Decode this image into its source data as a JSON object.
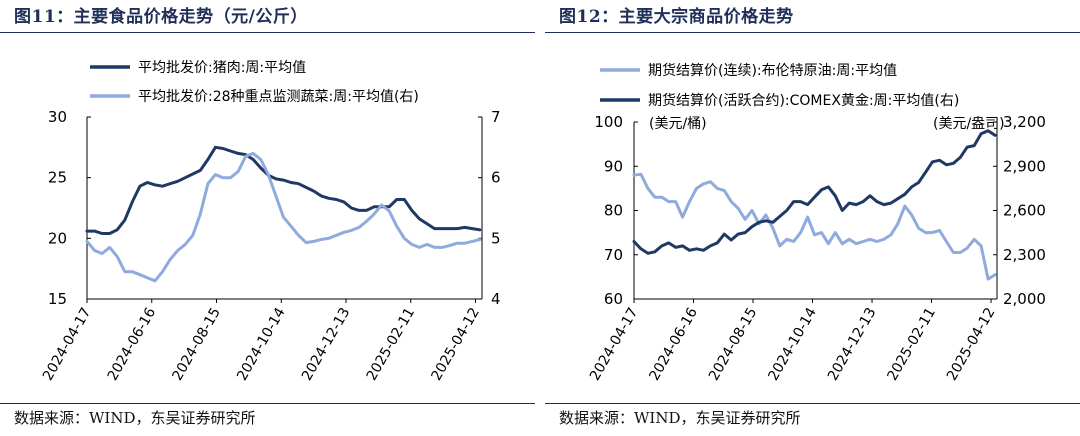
{
  "left": {
    "title": "图11：主要食品价格走势（元/公斤）",
    "source": "数据来源：WIND，东吴证券研究所"
  },
  "right": {
    "title": "图12：主要大宗商品价格走势",
    "source": "数据来源：WIND，东吴证券研究所"
  },
  "chart_data": [
    {
      "type": "line",
      "title": "图11：主要食品价格走势（元/公斤）",
      "x_tick_labels": [
        "2024-04-17",
        "2024-06-16",
        "2024-08-15",
        "2024-10-14",
        "2024-12-13",
        "2025-02-11",
        "2025-04-12"
      ],
      "x_range": [
        "2024-04-17",
        "2025-04-18"
      ],
      "y_left": {
        "ylim": [
          15,
          30
        ],
        "ticks": [
          15,
          20,
          25,
          30
        ],
        "label": ""
      },
      "y_right": {
        "ylim": [
          4,
          7
        ],
        "ticks": [
          4,
          5,
          6,
          7
        ],
        "label": ""
      },
      "grid": false,
      "legend_placement": "top-center",
      "series": [
        {
          "name": "平均批发价:猪肉:周:平均值",
          "axis": "left",
          "color": "#1f3864",
          "points": [
            [
              "2024-04-17",
              20.6
            ],
            [
              "2024-04-24",
              20.6
            ],
            [
              "2024-05-01",
              20.4
            ],
            [
              "2024-05-08",
              20.4
            ],
            [
              "2024-05-15",
              20.7
            ],
            [
              "2024-05-22",
              21.5
            ],
            [
              "2024-05-29",
              23.0
            ],
            [
              "2024-06-05",
              24.3
            ],
            [
              "2024-06-12",
              24.6
            ],
            [
              "2024-06-19",
              24.4
            ],
            [
              "2024-06-26",
              24.3
            ],
            [
              "2024-07-03",
              24.5
            ],
            [
              "2024-07-10",
              24.7
            ],
            [
              "2024-07-17",
              25.0
            ],
            [
              "2024-07-24",
              25.3
            ],
            [
              "2024-07-31",
              25.6
            ],
            [
              "2024-08-07",
              26.5
            ],
            [
              "2024-08-14",
              27.5
            ],
            [
              "2024-08-21",
              27.4
            ],
            [
              "2024-08-28",
              27.2
            ],
            [
              "2024-09-04",
              27.0
            ],
            [
              "2024-09-11",
              26.9
            ],
            [
              "2024-09-18",
              26.5
            ],
            [
              "2024-09-25",
              25.8
            ],
            [
              "2024-10-02",
              25.2
            ],
            [
              "2024-10-09",
              24.9
            ],
            [
              "2024-10-16",
              24.8
            ],
            [
              "2024-10-23",
              24.6
            ],
            [
              "2024-10-30",
              24.5
            ],
            [
              "2024-11-06",
              24.2
            ],
            [
              "2024-11-13",
              23.9
            ],
            [
              "2024-11-20",
              23.5
            ],
            [
              "2024-11-27",
              23.3
            ],
            [
              "2024-12-04",
              23.2
            ],
            [
              "2024-12-11",
              23.0
            ],
            [
              "2024-12-18",
              22.5
            ],
            [
              "2024-12-25",
              22.3
            ],
            [
              "2025-01-01",
              22.3
            ],
            [
              "2025-01-08",
              22.6
            ],
            [
              "2025-01-15",
              22.6
            ],
            [
              "2025-01-22",
              22.6
            ],
            [
              "2025-01-29",
              23.2
            ],
            [
              "2025-02-05",
              23.2
            ],
            [
              "2025-02-12",
              22.3
            ],
            [
              "2025-02-19",
              21.6
            ],
            [
              "2025-02-26",
              21.2
            ],
            [
              "2025-03-05",
              20.8
            ],
            [
              "2025-03-12",
              20.8
            ],
            [
              "2025-03-19",
              20.8
            ],
            [
              "2025-03-26",
              20.8
            ],
            [
              "2025-04-02",
              20.9
            ],
            [
              "2025-04-09",
              20.8
            ],
            [
              "2025-04-16",
              20.7
            ]
          ]
        },
        {
          "name": "平均批发价:28种重点监测蔬菜:周:平均值(右)",
          "axis": "right",
          "color": "#8faadc",
          "points": [
            [
              "2024-04-17",
              4.95
            ],
            [
              "2024-04-24",
              4.8
            ],
            [
              "2024-05-01",
              4.75
            ],
            [
              "2024-05-08",
              4.85
            ],
            [
              "2024-05-15",
              4.7
            ],
            [
              "2024-05-22",
              4.45
            ],
            [
              "2024-05-29",
              4.45
            ],
            [
              "2024-06-05",
              4.4
            ],
            [
              "2024-06-12",
              4.35
            ],
            [
              "2024-06-19",
              4.3
            ],
            [
              "2024-06-26",
              4.45
            ],
            [
              "2024-07-03",
              4.65
            ],
            [
              "2024-07-10",
              4.8
            ],
            [
              "2024-07-17",
              4.9
            ],
            [
              "2024-07-24",
              5.05
            ],
            [
              "2024-07-31",
              5.4
            ],
            [
              "2024-08-07",
              5.9
            ],
            [
              "2024-08-14",
              6.05
            ],
            [
              "2024-08-21",
              6.0
            ],
            [
              "2024-08-28",
              6.0
            ],
            [
              "2024-09-04",
              6.1
            ],
            [
              "2024-09-11",
              6.35
            ],
            [
              "2024-09-18",
              6.4
            ],
            [
              "2024-09-25",
              6.3
            ],
            [
              "2024-10-02",
              6.05
            ],
            [
              "2024-10-09",
              5.7
            ],
            [
              "2024-10-16",
              5.35
            ],
            [
              "2024-10-23",
              5.2
            ],
            [
              "2024-10-30",
              5.05
            ],
            [
              "2024-11-06",
              4.93
            ],
            [
              "2024-11-13",
              4.95
            ],
            [
              "2024-11-20",
              4.98
            ],
            [
              "2024-11-27",
              5.0
            ],
            [
              "2024-12-04",
              5.05
            ],
            [
              "2024-12-11",
              5.1
            ],
            [
              "2024-12-18",
              5.13
            ],
            [
              "2024-12-25",
              5.18
            ],
            [
              "2025-01-01",
              5.28
            ],
            [
              "2025-01-08",
              5.4
            ],
            [
              "2025-01-15",
              5.55
            ],
            [
              "2025-01-22",
              5.45
            ],
            [
              "2025-01-29",
              5.2
            ],
            [
              "2025-02-05",
              5.0
            ],
            [
              "2025-02-12",
              4.9
            ],
            [
              "2025-02-19",
              4.85
            ],
            [
              "2025-02-26",
              4.9
            ],
            [
              "2025-03-05",
              4.85
            ],
            [
              "2025-03-12",
              4.85
            ],
            [
              "2025-03-19",
              4.88
            ],
            [
              "2025-03-26",
              4.92
            ],
            [
              "2025-04-02",
              4.92
            ],
            [
              "2025-04-09",
              4.95
            ],
            [
              "2025-04-16",
              4.98
            ]
          ]
        }
      ]
    },
    {
      "type": "line",
      "title": "图12：主要大宗商品价格走势",
      "x_tick_labels": [
        "2024-04-17",
        "2024-06-16",
        "2024-08-15",
        "2024-10-14",
        "2024-12-13",
        "2025-02-11",
        "2025-04-12"
      ],
      "x_range": [
        "2024-04-17",
        "2025-04-18"
      ],
      "y_left": {
        "ylim": [
          60,
          100
        ],
        "ticks": [
          60,
          70,
          80,
          90,
          100
        ],
        "label": "(美元/桶)"
      },
      "y_right": {
        "ylim": [
          2000,
          3200
        ],
        "ticks": [
          2000,
          2300,
          2600,
          2900,
          3200
        ],
        "tick_labels": [
          "2,000",
          "2,300",
          "2,600",
          "2,900",
          "3,200"
        ],
        "label": "(美元/盎司)"
      },
      "grid": false,
      "legend_placement": "top-center",
      "series": [
        {
          "name": "期货结算价(连续):布伦特原油:周:平均值",
          "axis": "left",
          "color": "#8faadc",
          "points": [
            [
              "2024-04-17",
              88.0
            ],
            [
              "2024-04-24",
              88.2
            ],
            [
              "2024-05-01",
              85.0
            ],
            [
              "2024-05-08",
              83.0
            ],
            [
              "2024-05-15",
              83.0
            ],
            [
              "2024-05-22",
              82.0
            ],
            [
              "2024-05-29",
              82.0
            ],
            [
              "2024-06-05",
              78.5
            ],
            [
              "2024-06-12",
              82.0
            ],
            [
              "2024-06-19",
              85.0
            ],
            [
              "2024-06-26",
              86.0
            ],
            [
              "2024-07-03",
              86.5
            ],
            [
              "2024-07-10",
              85.0
            ],
            [
              "2024-07-17",
              84.5
            ],
            [
              "2024-07-24",
              82.0
            ],
            [
              "2024-07-31",
              80.5
            ],
            [
              "2024-08-07",
              78.0
            ],
            [
              "2024-08-14",
              80.0
            ],
            [
              "2024-08-21",
              77.0
            ],
            [
              "2024-08-28",
              79.0
            ],
            [
              "2024-09-04",
              76.0
            ],
            [
              "2024-09-11",
              72.0
            ],
            [
              "2024-09-18",
              73.5
            ],
            [
              "2024-09-25",
              73.0
            ],
            [
              "2024-10-02",
              75.0
            ],
            [
              "2024-10-09",
              78.5
            ],
            [
              "2024-10-16",
              74.5
            ],
            [
              "2024-10-23",
              75.0
            ],
            [
              "2024-10-30",
              72.5
            ],
            [
              "2024-11-06",
              75.0
            ],
            [
              "2024-11-13",
              72.5
            ],
            [
              "2024-11-20",
              73.5
            ],
            [
              "2024-11-27",
              72.5
            ],
            [
              "2024-12-04",
              73.0
            ],
            [
              "2024-12-11",
              73.5
            ],
            [
              "2024-12-18",
              73.0
            ],
            [
              "2024-12-25",
              73.5
            ],
            [
              "2025-01-01",
              74.5
            ],
            [
              "2025-01-08",
              77.0
            ],
            [
              "2025-01-15",
              81.0
            ],
            [
              "2025-01-22",
              79.0
            ],
            [
              "2025-01-29",
              76.0
            ],
            [
              "2025-02-05",
              75.0
            ],
            [
              "2025-02-12",
              75.0
            ],
            [
              "2025-02-19",
              75.5
            ],
            [
              "2025-02-26",
              73.0
            ],
            [
              "2025-03-05",
              70.5
            ],
            [
              "2025-03-12",
              70.5
            ],
            [
              "2025-03-19",
              71.5
            ],
            [
              "2025-03-26",
              73.5
            ],
            [
              "2025-04-02",
              72.0
            ],
            [
              "2025-04-09",
              64.5
            ],
            [
              "2025-04-16",
              65.5
            ]
          ]
        },
        {
          "name": "期货结算价(活跃合约):COMEX黄金:周:平均值(右)",
          "axis": "right",
          "color": "#1f3864",
          "points": [
            [
              "2024-04-17",
              2390
            ],
            [
              "2024-04-24",
              2340
            ],
            [
              "2024-05-01",
              2310
            ],
            [
              "2024-05-08",
              2320
            ],
            [
              "2024-05-15",
              2360
            ],
            [
              "2024-05-22",
              2380
            ],
            [
              "2024-05-29",
              2350
            ],
            [
              "2024-06-05",
              2360
            ],
            [
              "2024-06-12",
              2330
            ],
            [
              "2024-06-19",
              2340
            ],
            [
              "2024-06-26",
              2330
            ],
            [
              "2024-07-03",
              2360
            ],
            [
              "2024-07-10",
              2380
            ],
            [
              "2024-07-17",
              2440
            ],
            [
              "2024-07-24",
              2400
            ],
            [
              "2024-07-31",
              2440
            ],
            [
              "2024-08-07",
              2450
            ],
            [
              "2024-08-14",
              2490
            ],
            [
              "2024-08-21",
              2520
            ],
            [
              "2024-08-28",
              2530
            ],
            [
              "2024-09-04",
              2520
            ],
            [
              "2024-09-11",
              2560
            ],
            [
              "2024-09-18",
              2600
            ],
            [
              "2024-09-25",
              2660
            ],
            [
              "2024-10-02",
              2660
            ],
            [
              "2024-10-09",
              2640
            ],
            [
              "2024-10-16",
              2690
            ],
            [
              "2024-10-23",
              2740
            ],
            [
              "2024-10-30",
              2760
            ],
            [
              "2024-11-06",
              2700
            ],
            [
              "2024-11-13",
              2600
            ],
            [
              "2024-11-20",
              2650
            ],
            [
              "2024-11-27",
              2640
            ],
            [
              "2024-12-04",
              2660
            ],
            [
              "2024-12-11",
              2700
            ],
            [
              "2024-12-18",
              2660
            ],
            [
              "2024-12-25",
              2640
            ],
            [
              "2025-01-01",
              2650
            ],
            [
              "2025-01-08",
              2680
            ],
            [
              "2025-01-15",
              2710
            ],
            [
              "2025-01-22",
              2760
            ],
            [
              "2025-01-29",
              2790
            ],
            [
              "2025-02-05",
              2860
            ],
            [
              "2025-02-12",
              2930
            ],
            [
              "2025-02-19",
              2940
            ],
            [
              "2025-02-26",
              2910
            ],
            [
              "2025-03-05",
              2920
            ],
            [
              "2025-03-12",
              2960
            ],
            [
              "2025-03-19",
              3030
            ],
            [
              "2025-03-26",
              3040
            ],
            [
              "2025-04-02",
              3120
            ],
            [
              "2025-04-09",
              3140
            ],
            [
              "2025-04-16",
              3110
            ]
          ]
        }
      ]
    }
  ]
}
